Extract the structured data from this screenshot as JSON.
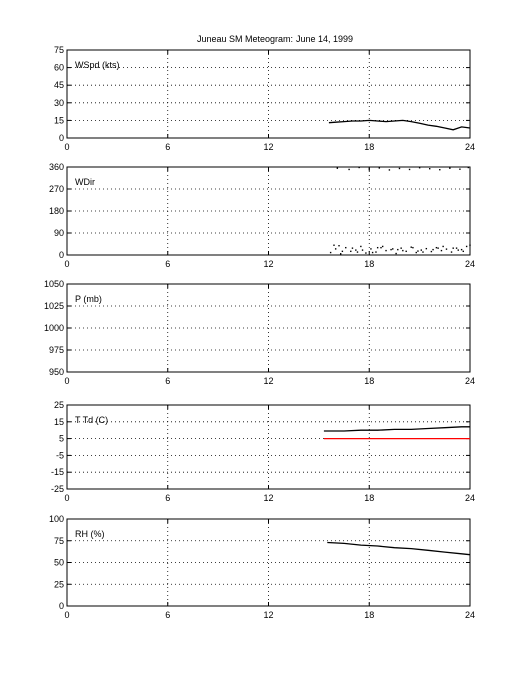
{
  "figure": {
    "title_station": "Juneau SM Meteogram:",
    "title_date": "June 14, 1999"
  },
  "colors": {
    "primary": "#000000",
    "dewpoint": "#ff0000",
    "background": "#ffffff"
  },
  "chart_data": [
    {
      "type": "line",
      "ylabel": "WSpd (kts)",
      "xlim": [
        0,
        24
      ],
      "ylim": [
        0,
        75
      ],
      "xticks": [
        0,
        6,
        12,
        18,
        24
      ],
      "yticks": [
        0,
        15,
        30,
        45,
        60,
        75
      ],
      "grid": true,
      "series": [
        {
          "color": "#000000",
          "x": [
            15.6,
            16,
            16.5,
            17,
            17.5,
            18,
            18.5,
            19,
            19.5,
            20,
            20.5,
            21,
            21.5,
            22,
            22.5,
            23,
            23.5,
            24
          ],
          "y": [
            13,
            13.5,
            14,
            14.5,
            14.5,
            15,
            14.5,
            14,
            14.5,
            15,
            14,
            12.5,
            11,
            10,
            8.5,
            7,
            9.5,
            8.5
          ]
        }
      ]
    },
    {
      "type": "scatter",
      "ylabel": "WDir",
      "xlim": [
        0,
        24
      ],
      "ylim": [
        0,
        360
      ],
      "xticks": [
        0,
        6,
        12,
        18,
        24
      ],
      "yticks": [
        0,
        90,
        180,
        270,
        360
      ],
      "grid": true,
      "series": [
        {
          "color": "#000000",
          "x": [
            15.7,
            16.0,
            16.3,
            16.6,
            16.9,
            17.2,
            17.5,
            17.8,
            18.1,
            18.4,
            18.7,
            19.0,
            19.3,
            19.6,
            19.9,
            20.2,
            20.5,
            20.8,
            21.1,
            21.4,
            21.7,
            22.0,
            22.3,
            22.6,
            22.9,
            23.2,
            23.5,
            23.8,
            15.9,
            16.4,
            17.0,
            17.6,
            18.2,
            18.8,
            19.4,
            20.0,
            20.6,
            21.2,
            21.8,
            22.4,
            23.0,
            23.6,
            16.2,
            17.3,
            18.5,
            19.7,
            20.9,
            22.1,
            23.3,
            24.0,
            16.1,
            16.8,
            17.4,
            18.0,
            18.6,
            19.2,
            19.8,
            20.4,
            21.0,
            21.6,
            22.2,
            22.8,
            23.4,
            23.9
          ],
          "y": [
            10,
            25,
            5,
            30,
            15,
            20,
            35,
            8,
            25,
            12,
            30,
            18,
            22,
            6,
            28,
            15,
            32,
            10,
            20,
            26,
            14,
            30,
            18,
            24,
            12,
            28,
            22,
            35,
            40,
            15,
            28,
            20,
            10,
            35,
            25,
            18,
            30,
            12,
            22,
            35,
            28,
            15,
            38,
            12,
            30,
            22,
            16,
            28,
            20,
            40,
            355,
            350,
            358,
            352,
            356,
            348,
            354,
            350,
            357,
            353,
            349,
            355,
            351,
            358
          ]
        }
      ]
    },
    {
      "type": "line",
      "ylabel": "P (mb)",
      "xlim": [
        0,
        24
      ],
      "ylim": [
        950,
        1050
      ],
      "xticks": [
        0,
        6,
        12,
        18,
        24
      ],
      "yticks": [
        950,
        975,
        1000,
        1025,
        1050
      ],
      "grid": true,
      "series": []
    },
    {
      "type": "line",
      "ylabel": "T Td (C)",
      "xlim": [
        0,
        24
      ],
      "ylim": [
        -25,
        25
      ],
      "xticks": [
        0,
        6,
        12,
        18,
        24
      ],
      "yticks": [
        -25,
        -15,
        -5,
        5,
        15,
        25
      ],
      "grid": true,
      "series": [
        {
          "color": "#000000",
          "x": [
            15.3,
            16.5,
            17.5,
            18.5,
            19.5,
            20.5,
            21.5,
            22.5,
            23.5,
            24
          ],
          "y": [
            9.5,
            9.5,
            10,
            10,
            10.5,
            10.5,
            11,
            11.5,
            12,
            12
          ]
        },
        {
          "color": "#ff0000",
          "x": [
            15.3,
            16.5,
            17.5,
            18.5,
            19.5,
            20.5,
            21.5,
            22.5,
            23.5,
            24
          ],
          "y": [
            5,
            5,
            5,
            5,
            5,
            5,
            5,
            5,
            5,
            5
          ]
        }
      ]
    },
    {
      "type": "line",
      "ylabel": "RH (%)",
      "xlim": [
        0,
        24
      ],
      "ylim": [
        0,
        100
      ],
      "xticks": [
        0,
        6,
        12,
        18,
        24
      ],
      "yticks": [
        0,
        25,
        50,
        75,
        100
      ],
      "grid": true,
      "series": [
        {
          "color": "#000000",
          "x": [
            15.5,
            16.5,
            17.5,
            18.5,
            19.5,
            20.5,
            21.5,
            22.5,
            23.5,
            24
          ],
          "y": [
            73,
            72,
            70,
            69,
            67,
            66,
            64,
            62,
            60,
            59
          ]
        }
      ]
    }
  ]
}
